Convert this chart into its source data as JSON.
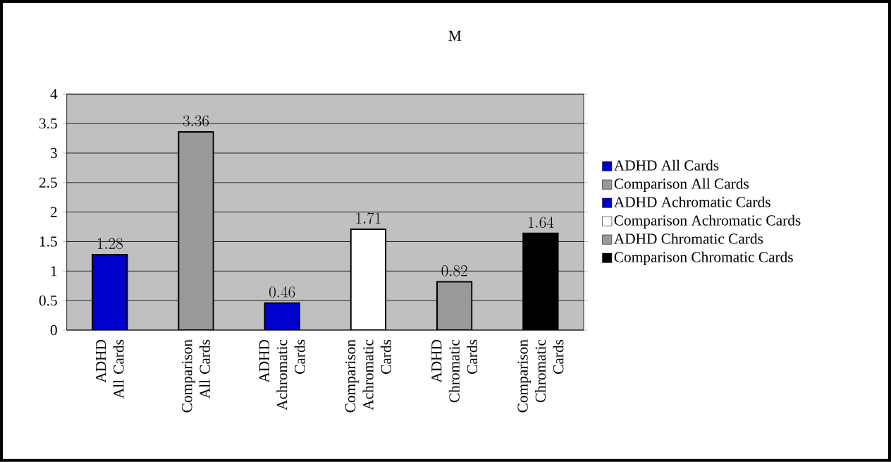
{
  "chart_data": {
    "type": "bar",
    "title": "M",
    "categories": [
      "ADHD All Cards",
      "Comparison All Cards",
      "ADHD Achromatic Cards",
      "Comparison Achromatic Cards",
      "ADHD Chromatic Cards",
      "Comparison Chromatic Cards"
    ],
    "series": [
      {
        "name": "ADHD All Cards",
        "color": "#0000cc",
        "values": [
          1.28,
          null,
          null,
          null,
          null,
          null
        ]
      },
      {
        "name": "Comparison All Cards",
        "color": "#999999",
        "values": [
          null,
          3.36,
          null,
          null,
          null,
          null
        ]
      },
      {
        "name": "ADHD Achromatic Cards",
        "color": "#0000cc",
        "values": [
          null,
          null,
          0.46,
          null,
          null,
          null
        ]
      },
      {
        "name": "Comparison Achromatic Cards",
        "color": "#ffffff",
        "values": [
          null,
          null,
          null,
          1.71,
          null,
          null
        ]
      },
      {
        "name": "ADHD Chromatic Cards",
        "color": "#999999",
        "values": [
          null,
          null,
          null,
          null,
          0.82,
          null
        ]
      },
      {
        "name": "Comparison Chromatic Cards",
        "color": "#000000",
        "values": [
          null,
          null,
          null,
          null,
          null,
          1.64
        ]
      }
    ],
    "ylim": [
      0,
      4
    ],
    "yticks": [
      0,
      0.5,
      1,
      1.5,
      2,
      2.5,
      3,
      3.5,
      4
    ],
    "grid": "y",
    "legend": "right",
    "data_labels": true
  }
}
